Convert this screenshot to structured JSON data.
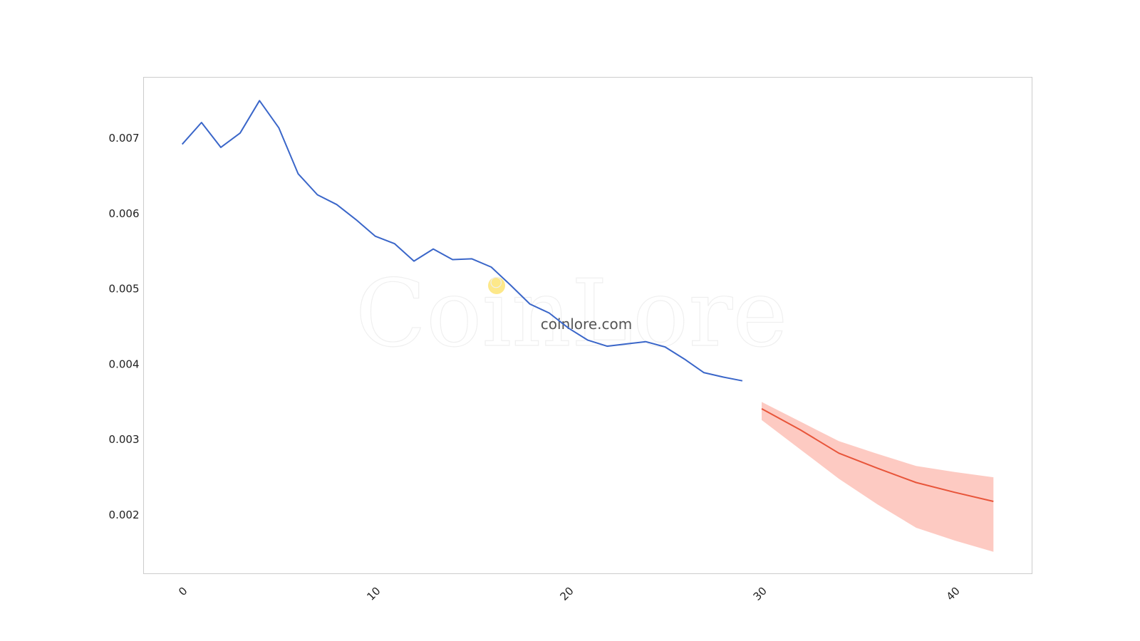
{
  "colors": {
    "history_line": "#3a66c9",
    "forecast_line": "#e8553a",
    "forecast_band": "#fcb3a8",
    "watermark_dot": "#fde88a",
    "frame": "#cccccc",
    "text": "#222222"
  },
  "watermark": {
    "logo_text": "CoinLore",
    "site": "coinlore.com"
  },
  "chart_data": {
    "type": "line",
    "xlim": [
      -2,
      44
    ],
    "ylim": [
      0.00122,
      0.00781
    ],
    "grid": false,
    "legend": "none",
    "x_ticks": [
      0,
      10,
      20,
      30,
      40
    ],
    "x_tick_labels": [
      "0",
      "10",
      "20",
      "30",
      "40"
    ],
    "y_ticks": [
      0.002,
      0.003,
      0.004,
      0.005,
      0.006,
      0.007
    ],
    "y_tick_labels": [
      "0.002",
      "0.003",
      "0.004",
      "0.005",
      "0.006",
      "0.007"
    ],
    "series": [
      {
        "role": "history",
        "x": [
          0,
          1,
          2,
          3,
          4,
          5,
          6,
          7,
          8,
          9,
          10,
          11,
          12,
          13,
          14,
          15,
          16,
          17,
          18,
          19,
          20,
          21,
          22,
          23,
          24,
          25,
          26,
          27,
          28,
          29
        ],
        "y": [
          0.00692,
          0.00721,
          0.00688,
          0.00707,
          0.0075,
          0.00714,
          0.00653,
          0.00625,
          0.00612,
          0.00592,
          0.0057,
          0.0056,
          0.00537,
          0.00553,
          0.00539,
          0.0054,
          0.00529,
          0.00505,
          0.0048,
          0.00468,
          0.00448,
          0.00432,
          0.00424,
          0.00427,
          0.0043,
          0.00423,
          0.00407,
          0.00389,
          0.00383,
          0.00378
        ]
      },
      {
        "role": "forecast",
        "x": [
          30,
          32,
          34,
          36,
          38,
          40,
          42
        ],
        "y": [
          0.00341,
          0.00313,
          0.00282,
          0.00262,
          0.00243,
          0.0023,
          0.00218
        ],
        "lower": [
          0.00326,
          0.00287,
          0.00248,
          0.00214,
          0.00183,
          0.00166,
          0.00151
        ],
        "upper": [
          0.0035,
          0.00324,
          0.00298,
          0.00281,
          0.00265,
          0.00257,
          0.0025
        ]
      }
    ]
  }
}
